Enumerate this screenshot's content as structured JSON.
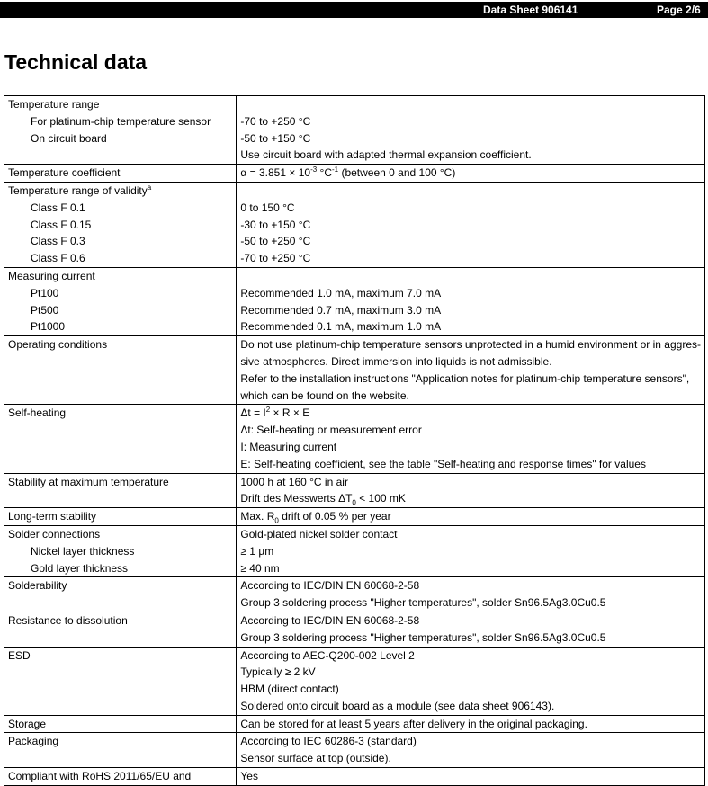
{
  "header": {
    "document": "Data Sheet 906141",
    "page": "Page 2/6"
  },
  "title": "Technical data",
  "table": {
    "rows": [
      {
        "lines": [
          [
            "Temperature range",
            null
          ],
          [
            "For platinum-chip temperature sensor",
            "-70 to +250 °C"
          ],
          [
            "On circuit board",
            "-50 to +150 °C"
          ],
          [
            null,
            "Use circuit board with adapted thermal expansion coefficient."
          ]
        ]
      },
      {
        "lines": [
          [
            "Temperature coefficient",
            [
              "α = 3.851 × 10",
              {
                "sup": "-3"
              },
              " °C",
              {
                "sup": "-1"
              },
              " (between 0 and 100 °C)"
            ]
          ]
        ]
      },
      {
        "lines": [
          [
            [
              "Temperature range of validity",
              {
                "sup": "a"
              }
            ],
            null
          ],
          [
            "Class F 0.1",
            "0 to 150 °C"
          ],
          [
            "Class F 0.15",
            "-30 to +150 °C"
          ],
          [
            "Class F 0.3",
            "-50 to +250 °C"
          ],
          [
            "Class F 0.6",
            "-70 to +250 °C"
          ]
        ]
      },
      {
        "lines": [
          [
            "Measuring current",
            null
          ],
          [
            "Pt100",
            "Recommended 1.0 mA, maximum 7.0 mA"
          ],
          [
            "Pt500",
            "Recommended 0.7 mA, maximum 3.0 mA"
          ],
          [
            "Pt1000",
            "Recommended 0.1 mA, maximum 1.0 mA"
          ]
        ]
      },
      {
        "lines": [
          [
            "Operating conditions",
            "Do not use platinum-chip temperature sensors unprotected in a humid environment or in aggres-"
          ],
          [
            null,
            "sive atmospheres. Direct immersion into liquids is not admissible."
          ],
          [
            null,
            "Refer to the installation instructions \"Application notes for platinum-chip temperature sensors\","
          ],
          [
            null,
            "which can be found on the website."
          ]
        ]
      },
      {
        "lines": [
          [
            "Self-heating",
            [
              "Δt = I",
              {
                "sup": "2"
              },
              " × R × E"
            ]
          ],
          [
            null,
            "Δt: Self-heating or measurement error"
          ],
          [
            null,
            "I: Measuring current"
          ],
          [
            null,
            "E: Self-heating coefficient, see the table \"Self-heating and response times\" for values"
          ]
        ]
      },
      {
        "lines": [
          [
            "Stability at maximum temperature",
            "1000 h at 160 °C in air"
          ],
          [
            null,
            [
              "Drift des Messwerts ΔT",
              {
                "sub": "0"
              },
              " < 100 mK"
            ]
          ]
        ]
      },
      {
        "lines": [
          [
            "Long-term stability",
            [
              "Max. R",
              {
                "sub": "0"
              },
              " drift of 0.05 % per year"
            ]
          ]
        ]
      },
      {
        "lines": [
          [
            "Solder connections",
            "Gold-plated nickel solder contact"
          ],
          [
            "Nickel layer thickness",
            "≥ 1 µm"
          ],
          [
            "Gold layer thickness",
            "≥ 40 nm"
          ]
        ]
      },
      {
        "lines": [
          [
            "Solderability",
            "According to IEC/DIN EN 60068-2-58"
          ],
          [
            null,
            "Group 3 soldering process \"Higher temperatures\", solder Sn96.5Ag3.0Cu0.5"
          ]
        ]
      },
      {
        "lines": [
          [
            "Resistance to dissolution",
            "According to IEC/DIN EN 60068-2-58"
          ],
          [
            null,
            "Group 3 soldering process \"Higher temperatures\", solder Sn96.5Ag3.0Cu0.5"
          ]
        ]
      },
      {
        "lines": [
          [
            "ESD",
            "According to AEC-Q200-002 Level 2"
          ],
          [
            null,
            "Typically ≥ 2 kV"
          ],
          [
            null,
            "HBM (direct contact)"
          ],
          [
            null,
            "Soldered onto circuit board as a module (see data sheet 906143)."
          ]
        ]
      },
      {
        "lines": [
          [
            "Storage",
            "Can be stored for at least 5 years after delivery in the original packaging."
          ]
        ]
      },
      {
        "lines": [
          [
            "Packaging",
            "According to IEC 60286-3 (standard)"
          ],
          [
            null,
            "Sensor surface at top (outside)."
          ]
        ]
      },
      {
        "lines": [
          [
            "Compliant with RoHS 2011/65/EU and",
            "Yes"
          ]
        ]
      }
    ]
  }
}
